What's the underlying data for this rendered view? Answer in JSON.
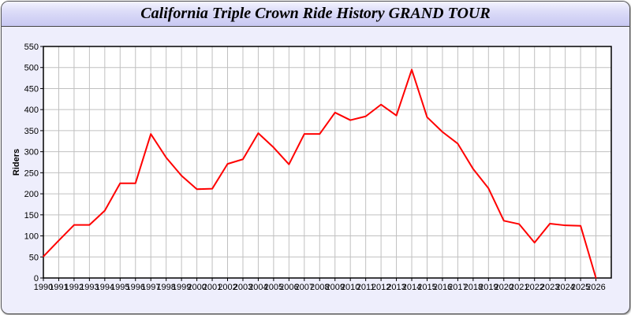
{
  "window": {
    "title": "California Triple Crown Ride History GRAND TOUR"
  },
  "chart_data": {
    "type": "line",
    "title": "California Triple Crown Ride History GRAND TOUR",
    "xlabel": "",
    "ylabel": "Riders",
    "x": [
      1990,
      1991,
      1992,
      1993,
      1994,
      1995,
      1996,
      1997,
      1998,
      1999,
      2000,
      2001,
      2002,
      2003,
      2004,
      2005,
      2006,
      2007,
      2008,
      2009,
      2010,
      2011,
      2012,
      2013,
      2014,
      2015,
      2016,
      2017,
      2018,
      2019,
      2020,
      2021,
      2022,
      2023,
      2024,
      2025,
      2026
    ],
    "values": [
      51,
      89,
      126,
      126,
      160,
      225,
      225,
      342,
      286,
      243,
      211,
      212,
      271,
      282,
      344,
      310,
      270,
      342,
      342,
      393,
      375,
      384,
      412,
      386,
      495,
      382,
      347,
      319,
      259,
      213,
      136,
      128,
      84,
      129,
      125,
      124,
      0
    ],
    "xlim": [
      1990,
      2027
    ],
    "ylim": [
      0,
      550
    ],
    "yticks": [
      0,
      50,
      100,
      150,
      200,
      250,
      300,
      350,
      400,
      450,
      500,
      550
    ],
    "grid": true,
    "line_color": "#ff0000",
    "grid_color": "#c0c0c0",
    "background_color": "#eeeefc"
  }
}
